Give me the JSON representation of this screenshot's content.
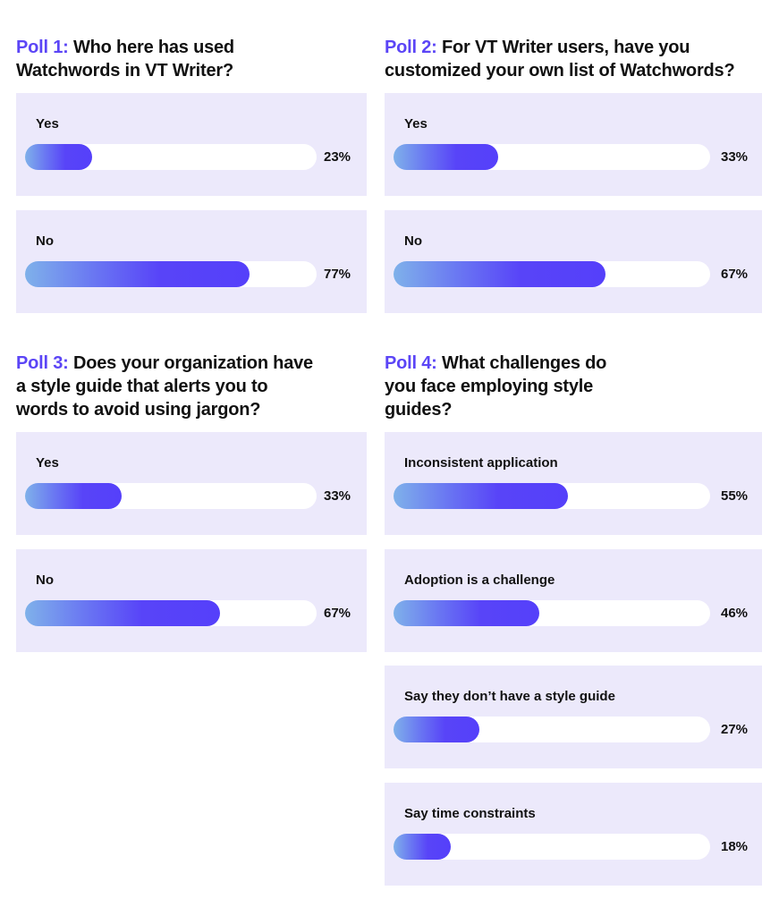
{
  "accent_color": "#5b45f6",
  "panel_color": "#ece9fb",
  "polls": [
    {
      "number": "Poll 1:",
      "question": "Who here has used Watchwords in VT Writer?",
      "options": [
        {
          "label": "Yes",
          "value": 23,
          "pct": "23%"
        },
        {
          "label": "No",
          "value": 77,
          "pct": "77%"
        }
      ]
    },
    {
      "number": "Poll 2:",
      "question": "For VT Writer users, have you customized your own list of Watchwords?",
      "options": [
        {
          "label": "Yes",
          "value": 33,
          "pct": "33%"
        },
        {
          "label": "No",
          "value": 67,
          "pct": "67%"
        }
      ]
    },
    {
      "number": "Poll 3:",
      "question": "Does your organization have a style guide that alerts you to words to avoid using jargon?",
      "options": [
        {
          "label": "Yes",
          "value": 33,
          "pct": "33%"
        },
        {
          "label": "No",
          "value": 67,
          "pct": "67%"
        }
      ]
    },
    {
      "number": "Poll 4:",
      "question": "What challenges do you face employing style guides?",
      "options": [
        {
          "label": "Inconsistent application",
          "value": 55,
          "pct": "55%"
        },
        {
          "label": "Adoption is a challenge",
          "value": 46,
          "pct": "46%"
        },
        {
          "label": "Say they don’t have a style guide",
          "value": 27,
          "pct": "27%"
        },
        {
          "label": "Say time constraints",
          "value": 18,
          "pct": "18%"
        }
      ]
    }
  ]
}
